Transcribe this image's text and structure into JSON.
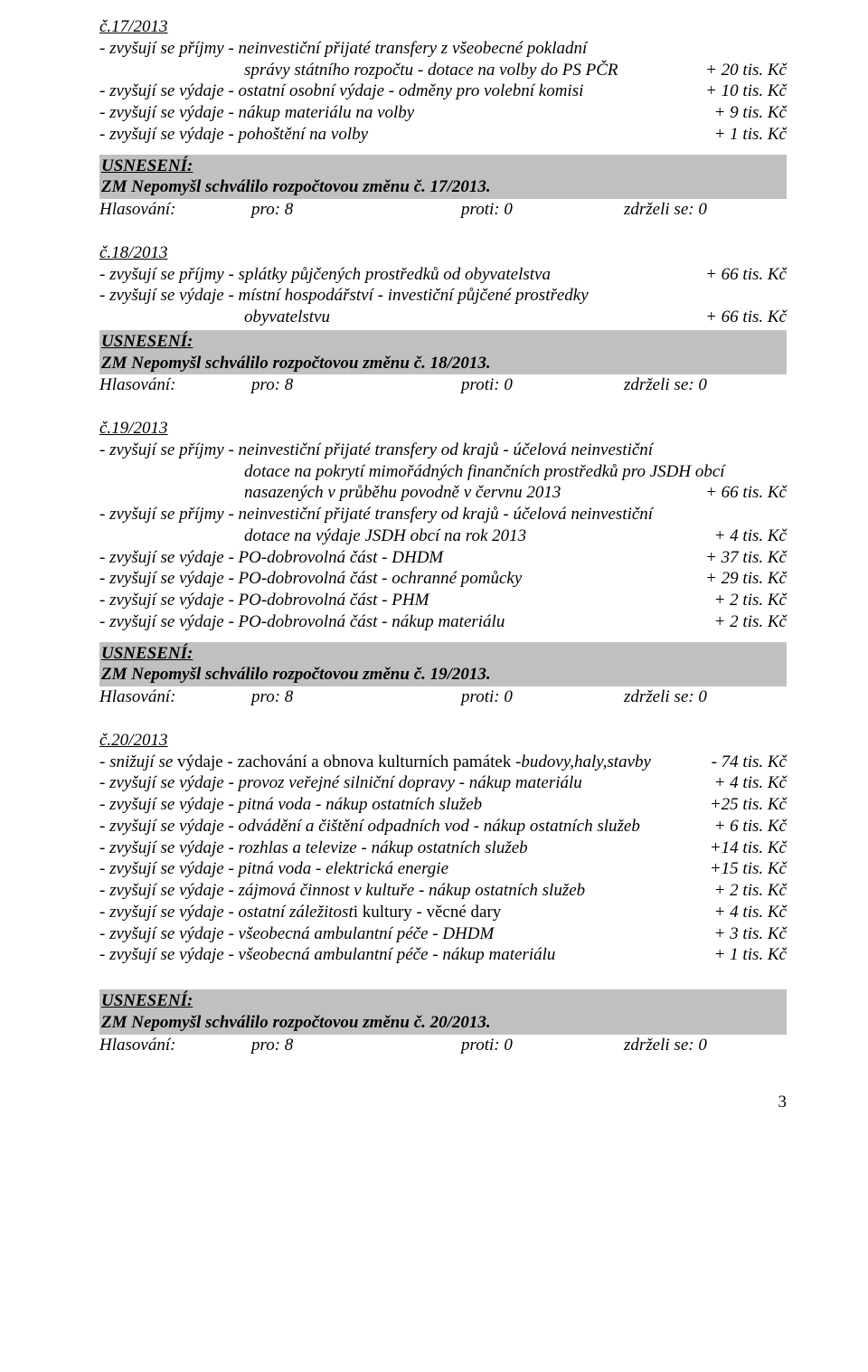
{
  "s17": {
    "heading": "č.17/2013",
    "l1": "- zvyšují se příjmy - neinvestiční přijaté transfery z všeobecné pokladní",
    "l2_left": "správy státního rozpočtu - dotace na volby do PS PČR",
    "l2_amt": "+ 20 tis. Kč",
    "l3_left": "- zvyšují se výdaje - ostatní osobní výdaje - odměny pro volební komisi",
    "l3_amt": "+ 10 tis. Kč",
    "l4_left": "- zvyšují se výdaje - nákup materiálu na volby",
    "l4_amt": "+   9 tis. Kč",
    "l5_left": "- zvyšují se výdaje - pohoštění na volby",
    "l5_amt": "+   1 tis. Kč",
    "res_title": "USNESENÍ:",
    "res_line": "ZM Nepomyšl schválilo rozpočtovou změnu č. 17/2013."
  },
  "vote": {
    "label": "Hlasování:",
    "pro": "pro: 8",
    "proti": "proti: 0",
    "zdr": "zdrželi se: 0"
  },
  "s18": {
    "heading": "č.18/2013",
    "l1_left": "- zvyšují se příjmy - splátky půjčených prostředků od obyvatelstva",
    "l1_amt": "+ 66 tis. Kč",
    "l2": "- zvyšují se výdaje - místní hospodářství - investiční půjčené prostředky",
    "l3_left": "obyvatelstvu",
    "l3_amt": "+ 66  tis. Kč",
    "res_title": "USNESENÍ:",
    "res_line": "ZM Nepomyšl schválilo rozpočtovou změnu č. 18/2013."
  },
  "s19": {
    "heading": "č.19/2013",
    "l1": "- zvyšují se příjmy - neinvestiční přijaté transfery od krajů - účelová neinvestiční",
    "l2": "dotace na pokrytí mimořádných finančních prostředků pro JSDH obcí",
    "l3_left": "nasazených v průběhu povodně v červnu 2013",
    "l3_amt": "+ 66 tis. Kč",
    "l4": "- zvyšují se příjmy - neinvestiční přijaté transfery od krajů - účelová neinvestiční",
    "l5_left": "dotace na výdaje JSDH obcí na rok 2013",
    "l5_amt": "+  4 tis. Kč",
    "l6_left": "- zvyšují se výdaje - PO-dobrovolná část - DHDM",
    "l6_amt": "+ 37 tis. Kč",
    "l7_left": "- zvyšují se výdaje - PO-dobrovolná část - ochranné pomůcky",
    "l7_amt": "+ 29 tis. Kč",
    "l8_left": "- zvyšují se výdaje - PO-dobrovolná část - PHM",
    "l8_amt": "+   2 tis. Kč",
    "l9_left": "- zvyšují se výdaje - PO-dobrovolná část - nákup materiálu",
    "l9_amt": "+   2 tis. Kč",
    "res_title": "USNESENÍ:",
    "res_line": "ZM Nepomyšl schválilo rozpočtovou změnu č. 19/2013."
  },
  "s20": {
    "heading": "č.20/2013",
    "l1_left_a": "- snižují se ",
    "l1_left_b": "výdaje - zachování a obnova kulturních památek -",
    "l1_left_c": "budovy,haly,stavby",
    "l1_amt": "- 74 tis. Kč",
    "l2_left": "- zvyšují se výdaje - provoz veřejné silniční dopravy - nákup materiálu",
    "l2_amt": "+  4 tis. Kč",
    "l3_left": "- zvyšují se výdaje - pitná voda - nákup ostatních služeb",
    "l3_amt": "+25 tis. Kč",
    "l4_left": "- zvyšují se výdaje - odvádění a čištění odpadních vod - nákup ostatních služeb",
    "l4_amt": "+ 6 tis. Kč",
    "l5_left": "- zvyšují se výdaje - rozhlas a televize - nákup ostatních služeb",
    "l5_amt": "+14 tis. Kč",
    "l6_left": "- zvyšují se výdaje - pitná voda - elektrická energie",
    "l6_amt": "+15 tis. Kč",
    "l7_left": "- zvyšují se výdaje - zájmová činnost v kultuře - nákup ostatních služeb",
    "l7_amt": "+  2 tis. Kč",
    "l8_left_a": "- zvyšují se výdaje - ostatní záležitost",
    "l8_left_b": "i kultury - věcné dary",
    "l8_amt": "+  4 tis. Kč",
    "l9_left": "- zvyšují se výdaje - všeobecná ambulantní péče - DHDM",
    "l9_amt": "+  3 tis. Kč",
    "l10_left": "- zvyšují se výdaje - všeobecná ambulantní péče - nákup materiálu",
    "l10_amt": "+  1 tis. Kč",
    "res_title": "USNESENÍ:",
    "res_line": "ZM Nepomyšl schválilo rozpočtovou změnu č. 20/2013."
  },
  "page": "3"
}
